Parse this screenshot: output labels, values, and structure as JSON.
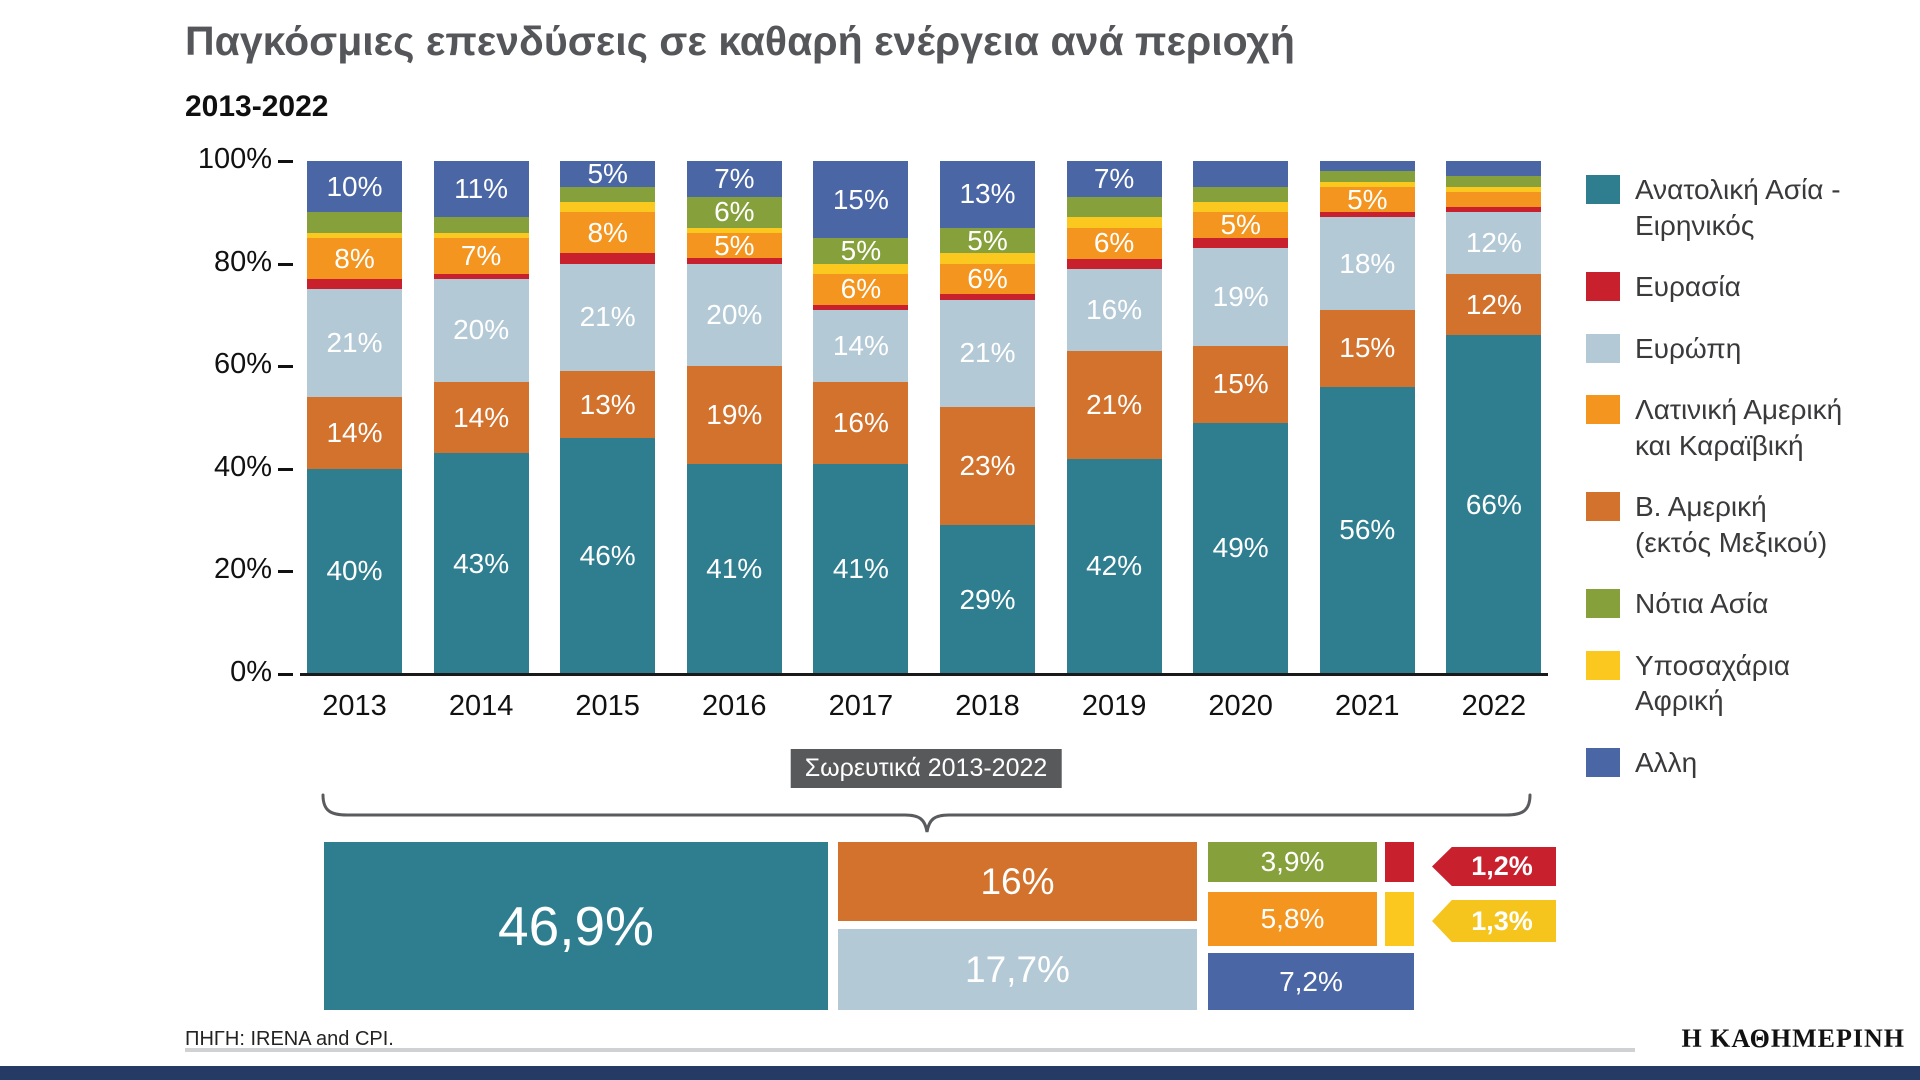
{
  "title": "Παγκόσμιες επενδύσεις σε καθαρή ενέργεια ανά περιοχή",
  "subtitle": "2013-2022",
  "source": "ΠΗΓΗ: IRENA and CPI.",
  "brand": "Η ΚΑΘΗΜΕΡΙΝΗ",
  "legend": [
    {
      "key": "eastAsia",
      "label": "Ανατολική Ασία -\nΕιρηνικός"
    },
    {
      "key": "eurasia",
      "label": "Ευρασία"
    },
    {
      "key": "europe",
      "label": "Ευρώπη"
    },
    {
      "key": "latinAmerica",
      "label": "Λατινική Αμερική\nκαι Καραϊβική"
    },
    {
      "key": "bAmerica",
      "label": "Β. Αμερική\n(εκτός Μεξικού)"
    },
    {
      "key": "southAsia",
      "label": "Νότια Ασία"
    },
    {
      "key": "subSaharan",
      "label": "Υποσαχάρια\nΑφρική"
    },
    {
      "key": "other",
      "label": "Αλλη"
    }
  ],
  "chart_data": {
    "type": "bar",
    "stacked": true,
    "percent": true,
    "title": "Παγκόσμιες επενδύσεις σε καθαρή ενέργεια ανά περιοχή 2013-2022",
    "xlabel": "",
    "ylabel": "",
    "ylim": [
      0,
      100
    ],
    "grid": false,
    "legend_position": "right",
    "y_ticks": [
      "0%",
      "20%",
      "40%",
      "60%",
      "80%",
      "100%"
    ],
    "categories": [
      "2013",
      "2014",
      "2015",
      "2016",
      "2017",
      "2018",
      "2019",
      "2020",
      "2021",
      "2022"
    ],
    "series": [
      {
        "key": "eastAsia",
        "name": "Ανατολική Ασία - Ειρηνικός",
        "color": "#2f7e8f",
        "values": [
          40,
          43,
          46,
          41,
          41,
          29,
          42,
          49,
          56,
          66
        ]
      },
      {
        "key": "bAmerica",
        "name": "Β. Αμερική (εκτός Μεξικού)",
        "color": "#d2722c",
        "values": [
          14,
          14,
          13,
          19,
          16,
          23,
          21,
          15,
          15,
          12
        ]
      },
      {
        "key": "europe",
        "name": "Ευρώπη",
        "color": "#b4c9d6",
        "values": [
          21,
          20,
          21,
          20,
          14,
          21,
          16,
          19,
          18,
          12
        ]
      },
      {
        "key": "eurasia",
        "name": "Ευρασία",
        "color": "#c9202e",
        "values": [
          2,
          1,
          2,
          1,
          1,
          1,
          2,
          2,
          1,
          1
        ]
      },
      {
        "key": "latinAmerica",
        "name": "Λατινική Αμερική και Καραϊβική",
        "color": "#f3951f",
        "values": [
          8,
          7,
          8,
          5,
          6,
          6,
          6,
          5,
          5,
          3
        ]
      },
      {
        "key": "subSaharan",
        "name": "Υποσαχάρια Αφρική",
        "color": "#fbc81f",
        "values": [
          1,
          1,
          2,
          1,
          2,
          2,
          2,
          2,
          1,
          1
        ]
      },
      {
        "key": "southAsia",
        "name": "Νότια Ασία",
        "color": "#86a03c",
        "values": [
          4,
          3,
          3,
          6,
          5,
          5,
          4,
          3,
          2,
          2
        ]
      },
      {
        "key": "other",
        "name": "Αλλη",
        "color": "#4a66a5",
        "values": [
          10,
          11,
          5,
          7,
          15,
          13,
          7,
          5,
          2,
          3
        ]
      }
    ],
    "bar_labels": [
      {
        "eastAsia": "40%",
        "bAmerica": "14%",
        "europe": "21%",
        "latinAmerica": "8%",
        "other": "10%"
      },
      {
        "eastAsia": "43%",
        "bAmerica": "14%",
        "europe": "20%",
        "latinAmerica": "7%",
        "other": "11%"
      },
      {
        "eastAsia": "46%",
        "bAmerica": "13%",
        "europe": "21%",
        "latinAmerica": "8%",
        "other": "5%"
      },
      {
        "eastAsia": "41%",
        "bAmerica": "19%",
        "europe": "20%",
        "latinAmerica": "5%",
        "southAsia": "6%",
        "other": "7%"
      },
      {
        "eastAsia": "41%",
        "bAmerica": "16%",
        "europe": "14%",
        "latinAmerica": "6%",
        "southAsia": "5%",
        "other": "15%"
      },
      {
        "eastAsia": "29%",
        "bAmerica": "23%",
        "europe": "21%",
        "latinAmerica": "6%",
        "southAsia": "5%",
        "other": "13%"
      },
      {
        "eastAsia": "42%",
        "bAmerica": "21%",
        "europe": "16%",
        "latinAmerica": "6%",
        "other": "7%"
      },
      {
        "eastAsia": "49%",
        "bAmerica": "15%",
        "europe": "19%",
        "latinAmerica": "5%"
      },
      {
        "eastAsia": "56%",
        "bAmerica": "15%",
        "europe": "18%",
        "latinAmerica": "5%"
      },
      {
        "eastAsia": "66%",
        "bAmerica": "12%",
        "europe": "12%"
      }
    ],
    "cumulative": {
      "label": "Σωρευτικά 2013-2022",
      "values": {
        "eastAsia": "46,9%",
        "bAmerica": "16%",
        "europe": "17,7%",
        "southAsia": "3,9%",
        "latinAmerica": "5,8%",
        "other": "7,2%",
        "eurasia": "1,2%",
        "subSaharan": "1,3%"
      }
    }
  },
  "colors": {
    "eastAsia": "#2f7e8f",
    "eurasia": "#c9202e",
    "europe": "#b4c9d6",
    "latinAmerica": "#f3951f",
    "bAmerica": "#d2722c",
    "southAsia": "#86a03c",
    "subSaharan": "#fbc81f",
    "other": "#4a66a5",
    "badge_bg": "#58595b",
    "title_text": "#55565a"
  }
}
